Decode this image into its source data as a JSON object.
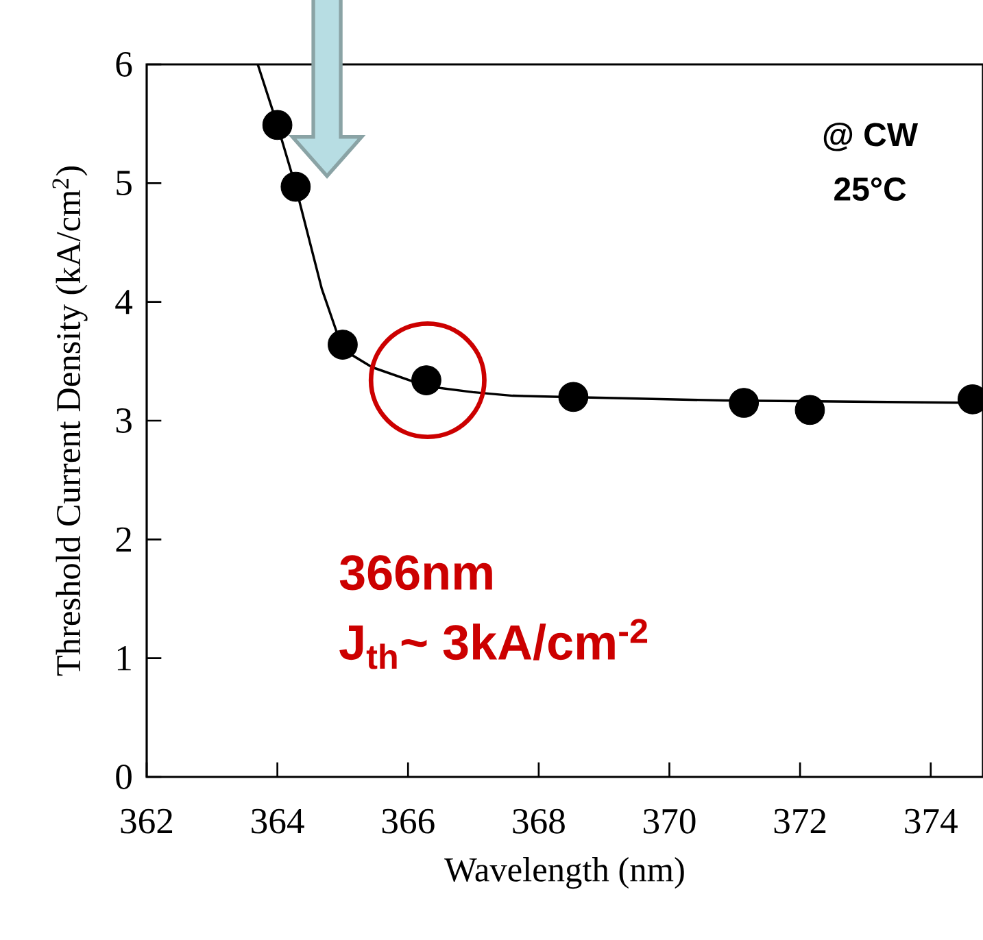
{
  "chart_data": {
    "type": "scatter",
    "xlabel": "Wavelength (nm)",
    "ylabel": "Threshold Current Density (kA/cm$^{2}$)",
    "xlim": [
      362,
      374.8
    ],
    "ylim": [
      0,
      6
    ],
    "xticks": [
      362,
      364,
      366,
      368,
      370,
      372,
      374
    ],
    "yticks": [
      0,
      1,
      2,
      3,
      4,
      5,
      6
    ],
    "grid": false,
    "marker": "circle",
    "series": [
      {
        "color": "#000000",
        "x": [
          364.0,
          364.28,
          365.0,
          366.28,
          368.53,
          371.14,
          372.15,
          374.64
        ],
        "values": [
          5.49,
          4.97,
          3.64,
          3.34,
          3.2,
          3.15,
          3.09,
          3.18
        ]
      },
      {
        "type": "line",
        "color": "#000000",
        "marker": "none",
        "line_style": "solid",
        "x": [
          363.7,
          364.0,
          364.28,
          364.68,
          365.0,
          365.45,
          366.28,
          366.99,
          367.6,
          370.84,
          374.7
        ],
        "values": [
          6.0,
          5.49,
          4.97,
          4.11,
          3.6,
          3.45,
          3.29,
          3.24,
          3.21,
          3.17,
          3.15
        ]
      }
    ],
    "annotations": [
      "366nm",
      "J$_{th}$~ 3kA/cm$^{-2}$",
      "@ CW",
      "25°C"
    ]
  }
}
